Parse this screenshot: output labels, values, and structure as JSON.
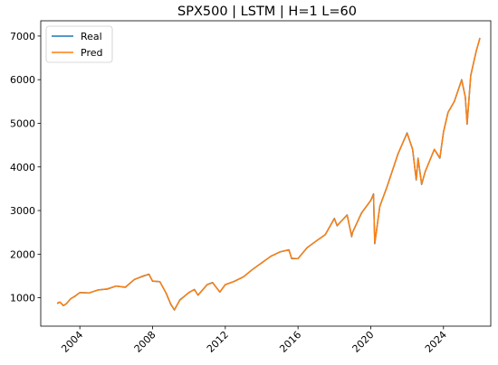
{
  "chart_data": {
    "type": "line",
    "title": "SPX500 | LSTM | H=1 L=60",
    "xlabel": "",
    "ylabel": "",
    "xlim": [
      2001.85,
      2026.6
    ],
    "ylim": [
      350,
      7350
    ],
    "x_ticks": [
      {
        "value": 2004,
        "label": "2004"
      },
      {
        "value": 2008,
        "label": "2008"
      },
      {
        "value": 2012,
        "label": "2012"
      },
      {
        "value": 2016,
        "label": "2016"
      },
      {
        "value": 2020,
        "label": "2020"
      },
      {
        "value": 2024,
        "label": "2024"
      }
    ],
    "y_ticks": [
      {
        "value": 1000,
        "label": "1000"
      },
      {
        "value": 2000,
        "label": "2000"
      },
      {
        "value": 3000,
        "label": "3000"
      },
      {
        "value": 4000,
        "label": "4000"
      },
      {
        "value": 5000,
        "label": "5000"
      },
      {
        "value": 6000,
        "label": "6000"
      },
      {
        "value": 7000,
        "label": "7000"
      }
    ],
    "grid": false,
    "legend": {
      "position": "top-left"
    },
    "series": [
      {
        "name": "Real",
        "color": "#1f77b4",
        "points": [
          [
            2002.75,
            870
          ],
          [
            2002.9,
            900
          ],
          [
            2003.1,
            820
          ],
          [
            2003.25,
            860
          ],
          [
            2003.5,
            980
          ],
          [
            2003.75,
            1040
          ],
          [
            2004.0,
            1120
          ],
          [
            2004.5,
            1110
          ],
          [
            2005.0,
            1180
          ],
          [
            2005.5,
            1200
          ],
          [
            2006.0,
            1270
          ],
          [
            2006.5,
            1240
          ],
          [
            2007.0,
            1420
          ],
          [
            2007.5,
            1500
          ],
          [
            2007.8,
            1540
          ],
          [
            2008.0,
            1380
          ],
          [
            2008.4,
            1370
          ],
          [
            2008.75,
            1100
          ],
          [
            2009.0,
            850
          ],
          [
            2009.2,
            720
          ],
          [
            2009.5,
            950
          ],
          [
            2010.0,
            1120
          ],
          [
            2010.3,
            1190
          ],
          [
            2010.5,
            1060
          ],
          [
            2011.0,
            1300
          ],
          [
            2011.3,
            1350
          ],
          [
            2011.7,
            1130
          ],
          [
            2012.0,
            1300
          ],
          [
            2012.5,
            1380
          ],
          [
            2013.0,
            1480
          ],
          [
            2013.5,
            1650
          ],
          [
            2014.0,
            1800
          ],
          [
            2014.5,
            1950
          ],
          [
            2015.0,
            2050
          ],
          [
            2015.5,
            2100
          ],
          [
            2015.65,
            1900
          ],
          [
            2016.0,
            1900
          ],
          [
            2016.5,
            2150
          ],
          [
            2017.0,
            2300
          ],
          [
            2017.5,
            2450
          ],
          [
            2018.0,
            2820
          ],
          [
            2018.15,
            2650
          ],
          [
            2018.7,
            2900
          ],
          [
            2018.95,
            2400
          ],
          [
            2019.0,
            2500
          ],
          [
            2019.5,
            2950
          ],
          [
            2020.0,
            3230
          ],
          [
            2020.15,
            3380
          ],
          [
            2020.22,
            2240
          ],
          [
            2020.5,
            3100
          ],
          [
            2020.9,
            3550
          ],
          [
            2021.5,
            4300
          ],
          [
            2022.0,
            4780
          ],
          [
            2022.3,
            4400
          ],
          [
            2022.5,
            3700
          ],
          [
            2022.6,
            4200
          ],
          [
            2022.8,
            3600
          ],
          [
            2023.0,
            3900
          ],
          [
            2023.5,
            4400
          ],
          [
            2023.8,
            4200
          ],
          [
            2024.0,
            4800
          ],
          [
            2024.25,
            5250
          ],
          [
            2024.6,
            5500
          ],
          [
            2025.0,
            6000
          ],
          [
            2025.2,
            5600
          ],
          [
            2025.3,
            4980
          ],
          [
            2025.5,
            6100
          ],
          [
            2025.8,
            6650
          ],
          [
            2026.0,
            6950
          ]
        ]
      },
      {
        "name": "Pred",
        "color": "#ff7f0e",
        "points": [
          [
            2002.75,
            875
          ],
          [
            2002.9,
            905
          ],
          [
            2003.1,
            825
          ],
          [
            2003.25,
            862
          ],
          [
            2003.5,
            975
          ],
          [
            2003.75,
            1045
          ],
          [
            2004.0,
            1118
          ],
          [
            2004.5,
            1112
          ],
          [
            2005.0,
            1178
          ],
          [
            2005.5,
            1205
          ],
          [
            2006.0,
            1268
          ],
          [
            2006.5,
            1245
          ],
          [
            2007.0,
            1418
          ],
          [
            2007.5,
            1505
          ],
          [
            2007.8,
            1535
          ],
          [
            2008.0,
            1385
          ],
          [
            2008.4,
            1368
          ],
          [
            2008.75,
            1105
          ],
          [
            2009.0,
            860
          ],
          [
            2009.2,
            725
          ],
          [
            2009.5,
            945
          ],
          [
            2010.0,
            1125
          ],
          [
            2010.3,
            1185
          ],
          [
            2010.5,
            1065
          ],
          [
            2011.0,
            1298
          ],
          [
            2011.3,
            1345
          ],
          [
            2011.7,
            1135
          ],
          [
            2012.0,
            1302
          ],
          [
            2012.5,
            1378
          ],
          [
            2013.0,
            1482
          ],
          [
            2013.5,
            1648
          ],
          [
            2014.0,
            1802
          ],
          [
            2014.5,
            1948
          ],
          [
            2015.0,
            2052
          ],
          [
            2015.5,
            2098
          ],
          [
            2015.65,
            1905
          ],
          [
            2016.0,
            1898
          ],
          [
            2016.5,
            2148
          ],
          [
            2017.0,
            2302
          ],
          [
            2017.5,
            2448
          ],
          [
            2018.0,
            2815
          ],
          [
            2018.15,
            2660
          ],
          [
            2018.7,
            2895
          ],
          [
            2018.95,
            2410
          ],
          [
            2019.0,
            2505
          ],
          [
            2019.5,
            2945
          ],
          [
            2020.0,
            3235
          ],
          [
            2020.15,
            3370
          ],
          [
            2020.22,
            2250
          ],
          [
            2020.5,
            3095
          ],
          [
            2020.9,
            3545
          ],
          [
            2021.5,
            4305
          ],
          [
            2022.0,
            4770
          ],
          [
            2022.3,
            4410
          ],
          [
            2022.5,
            3710
          ],
          [
            2022.6,
            4190
          ],
          [
            2022.8,
            3610
          ],
          [
            2023.0,
            3895
          ],
          [
            2023.5,
            4405
          ],
          [
            2023.8,
            4210
          ],
          [
            2024.0,
            4795
          ],
          [
            2024.25,
            5245
          ],
          [
            2024.6,
            5505
          ],
          [
            2025.0,
            5990
          ],
          [
            2025.2,
            5610
          ],
          [
            2025.3,
            4990
          ],
          [
            2025.5,
            6095
          ],
          [
            2025.8,
            6645
          ],
          [
            2026.0,
            6960
          ]
        ]
      }
    ]
  }
}
